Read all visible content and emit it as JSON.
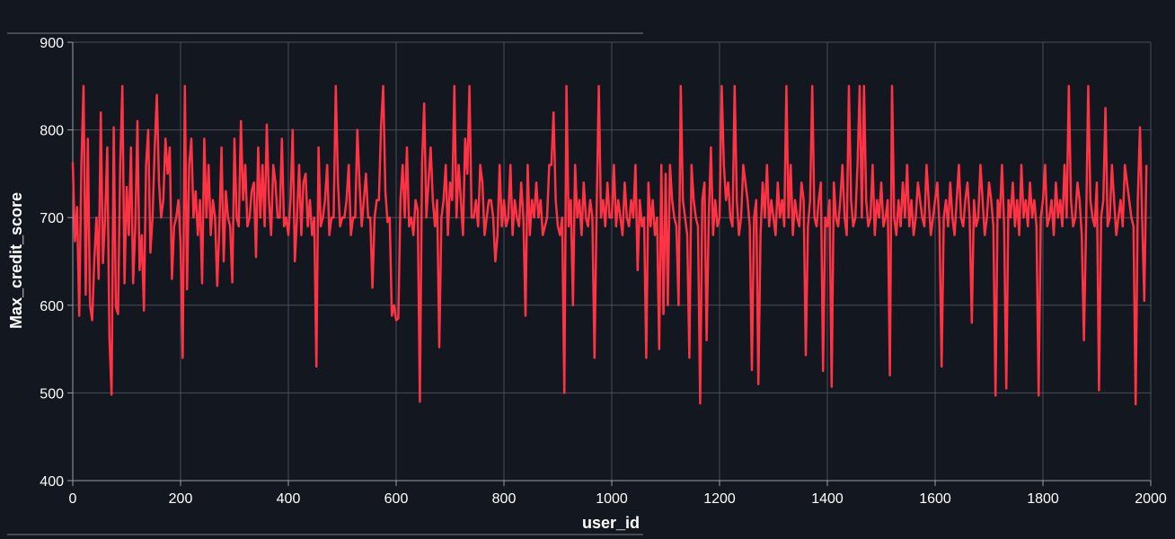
{
  "colors": {
    "background": "#131720",
    "series": "#ff3344",
    "grid": "#4a4e55",
    "axis": "#9a9ea5",
    "text": "#ffffff"
  },
  "chart_data": {
    "type": "line",
    "title": "",
    "xlabel": "user_id",
    "ylabel": "Max_credit_score",
    "xlim": [
      0,
      2000
    ],
    "ylim": [
      400,
      900
    ],
    "x_ticks": [
      0,
      200,
      400,
      600,
      800,
      1000,
      1200,
      1400,
      1600,
      1800,
      2000
    ],
    "y_ticks": [
      400,
      500,
      600,
      700,
      800,
      900
    ],
    "grid": true,
    "legend": "none",
    "series": [
      {
        "color": "#ff3344",
        "x_start": 0,
        "x_step": 4,
        "values": [
          763,
          673,
          712,
          588,
          760,
          850,
          612,
          790,
          600,
          583,
          652,
          700,
          630,
          820,
          648,
          700,
          780,
          563,
          498,
          803,
          598,
          590,
          760,
          850,
          625,
          735,
          680,
          780,
          625,
          690,
          810,
          640,
          680,
          594,
          760,
          800,
          660,
          700,
          778,
          840,
          740,
          700,
          720,
          790,
          750,
          780,
          630,
          690,
          700,
          720,
          670,
          540,
          850,
          618,
          760,
          790,
          700,
          730,
          680,
          720,
          625,
          790,
          700,
          760,
          680,
          720,
          700,
          622,
          690,
          780,
          650,
          730,
          700,
          690,
          626,
          790,
          700,
          690,
          810,
          720,
          760,
          690,
          700,
          730,
          740,
          655,
          780,
          700,
          760,
          690,
          806,
          720,
          680,
          760,
          740,
          700,
          700,
          790,
          690,
          700,
          680,
          720,
          800,
          650,
          700,
          760,
          680,
          740,
          750,
          690,
          720,
          680,
          700,
          530,
          780,
          690,
          700,
          720,
          760,
          680,
          700,
          700,
          850,
          740,
          690,
          700,
          700,
          720,
          760,
          680,
          700,
          700,
          800,
          740,
          690,
          720,
          750,
          700,
          700,
          620,
          700,
          720,
          720,
          805,
          850,
          730,
          695,
          700,
          588,
          600,
          583,
          585,
          720,
          760,
          700,
          780,
          690,
          700,
          680,
          720,
          708,
          490,
          760,
          830,
          700,
          740,
          780,
          720,
          690,
          720,
          552,
          700,
          720,
          760,
          680,
          740,
          720,
          850,
          700,
          760,
          720,
          680,
          790,
          750,
          850,
          700,
          700,
          720,
          690,
          760,
          740,
          680,
          700,
          720,
          720,
          700,
          650,
          680,
          760,
          690,
          720,
          690,
          700,
          760,
          680,
          720,
          700,
          690,
          740,
          700,
          588,
          760,
          680,
          720,
          700,
          740,
          700,
          720,
          680,
          690,
          700,
          760,
          760,
          820,
          720,
          690,
          680,
          700,
          500,
          850,
          690,
          720,
          600,
          760,
          700,
          720,
          680,
          740,
          700,
          690,
          720,
          700,
          540,
          710,
          850,
          700,
          720,
          690,
          740,
          700,
          700,
          760,
          690,
          720,
          700,
          680,
          740,
          700,
          690,
          720,
          700,
          760,
          640,
          720,
          690,
          700,
          540,
          740,
          690,
          720,
          680,
          700,
          550,
          760,
          590,
          750,
          600,
          760,
          720,
          700,
          690,
          600,
          850,
          720,
          700,
          680,
          540,
          760,
          720,
          700,
          690,
          488,
          720,
          740,
          560,
          700,
          780,
          680,
          720,
          690,
          700,
          850,
          760,
          720,
          740,
          700,
          690,
          850,
          720,
          680,
          700,
          760,
          740,
          720,
          690,
          526,
          700,
          720,
          510,
          680,
          740,
          700,
          760,
          690,
          720,
          700,
          680,
          740,
          700,
          720,
          690,
          850,
          700,
          760,
          680,
          720,
          700,
          690,
          740,
          720,
          543,
          690,
          720,
          850,
          700,
          690,
          720,
          740,
          525,
          700,
          690,
          720,
          507,
          740,
          700,
          690,
          720,
          760,
          700,
          680,
          850,
          720,
          690,
          700,
          760,
          850,
          700,
          850,
          720,
          690,
          700,
          760,
          680,
          720,
          700,
          740,
          690,
          700,
          720,
          520,
          850,
          700,
          680,
          720,
          690,
          740,
          700,
          760,
          690,
          720,
          680,
          700,
          740,
          720,
          700,
          690,
          760,
          720,
          680,
          700,
          720,
          740,
          690,
          530,
          700,
          720,
          690,
          740,
          700,
          680,
          720,
          760,
          700,
          690,
          720,
          740,
          700,
          580,
          720,
          690,
          700,
          760,
          720,
          680,
          700,
          740,
          720,
          690,
          497,
          720,
          700,
          760,
          690,
          505,
          720,
          700,
          740,
          690,
          720,
          680,
          760,
          700,
          720,
          690,
          740,
          700,
          720,
          690,
          497,
          700,
          720,
          760,
          690,
          700,
          720,
          680,
          740,
          700,
          720,
          690,
          760,
          700,
          850,
          720,
          690,
          700,
          740,
          720,
          680,
          560,
          690,
          850,
          720,
          700,
          690,
          740,
          503,
          700,
          720,
          825,
          690,
          700,
          760,
          720,
          680,
          700,
          720,
          690,
          760,
          740,
          720,
          700,
          690,
          487,
          720,
          803,
          700,
          605,
          760
        ]
      }
    ]
  }
}
